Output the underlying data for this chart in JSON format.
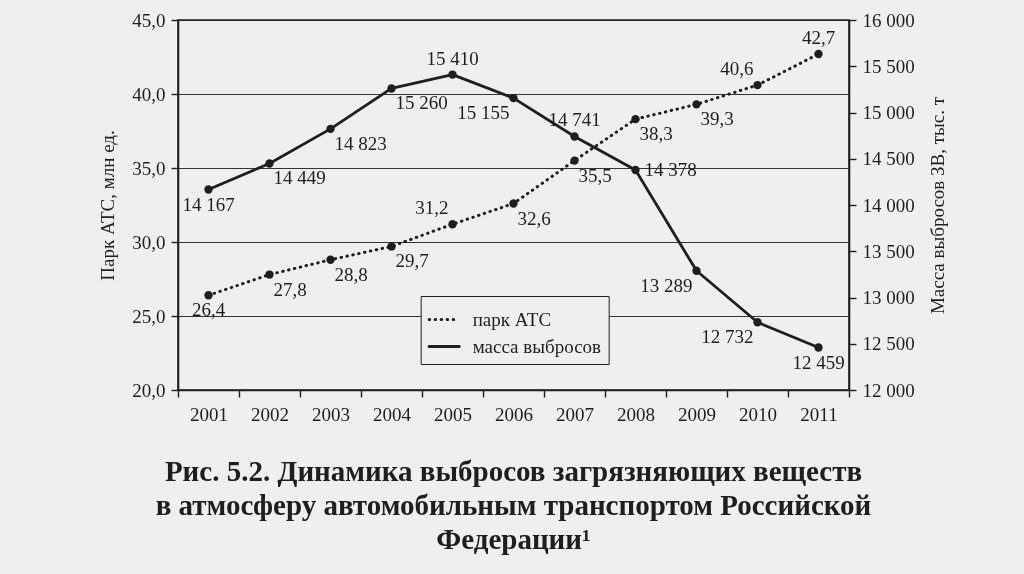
{
  "chart_data": {
    "type": "line",
    "title": "Рис. 5.2. Динамика выбросов загрязняющих веществ в атмосферу автомобильным транспортом Российской Федерации¹",
    "categories": [
      "2001",
      "2002",
      "2003",
      "2004",
      "2005",
      "2006",
      "2007",
      "2008",
      "2009",
      "2010",
      "2011"
    ],
    "ylabel": "Парк АТС, млн ед.",
    "y2label": "Масса выбросов ЗВ, тыс. т",
    "ylim": [
      20,
      45
    ],
    "yticks": [
      {
        "value": 20,
        "label": "20,0"
      },
      {
        "value": 25,
        "label": "25,0"
      },
      {
        "value": 30,
        "label": "30,0"
      },
      {
        "value": 35,
        "label": "35,0"
      },
      {
        "value": 40,
        "label": "40,0"
      },
      {
        "value": 45,
        "label": "45,0"
      }
    ],
    "y2lim": [
      12000,
      16000
    ],
    "y2ticks": [
      {
        "value": 12000,
        "label": "12 000"
      },
      {
        "value": 12500,
        "label": "12 500"
      },
      {
        "value": 13000,
        "label": "13 000"
      },
      {
        "value": 13500,
        "label": "13 500"
      },
      {
        "value": 14000,
        "label": "14 000"
      },
      {
        "value": 14500,
        "label": "14 500"
      },
      {
        "value": 15000,
        "label": "15 000"
      },
      {
        "value": 15500,
        "label": "15 500"
      },
      {
        "value": 16000,
        "label": "16 000"
      }
    ],
    "series": [
      {
        "name": "парк АТС",
        "color": "#1e1e1e",
        "line_style": "dotted",
        "values": [
          26.4,
          27.8,
          28.8,
          29.7,
          31.2,
          32.6,
          35.5,
          38.3,
          39.3,
          40.6,
          42.7
        ],
        "value_labels": [
          "26,4",
          "27,8",
          "28,8",
          "29,7",
          "31,2",
          "32,6",
          "35,5",
          "38,3",
          "39,3",
          "40,6",
          "42,7"
        ]
      },
      {
        "name": "масса выбросов",
        "color": "#1e1e1e",
        "line_style": "solid",
        "axis": "y2",
        "values": [
          14167,
          14449,
          14823,
          15260,
          15410,
          15155,
          14741,
          14378,
          13289,
          12732,
          12459
        ],
        "value_labels": [
          "14 167",
          "14 449",
          "14 823",
          "15 260",
          "15 410",
          "15 155",
          "14 741",
          "14 378",
          "13 289",
          "12 732",
          "12 459"
        ]
      }
    ],
    "marker": "circle",
    "grid": "y",
    "legend": "bottom"
  }
}
